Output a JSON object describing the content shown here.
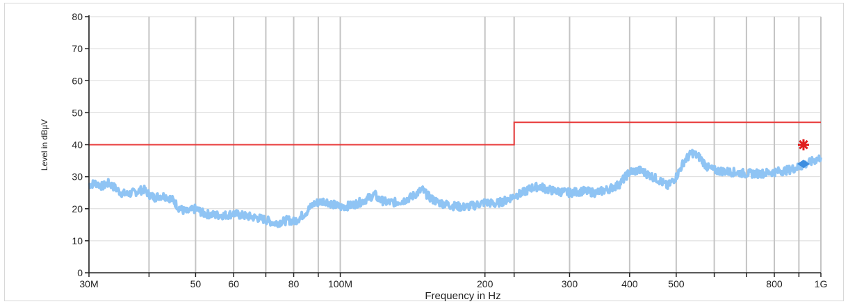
{
  "chart_data": {
    "type": "line",
    "xlabel": "Frequency in Hz",
    "ylabel": "Level in dBµV",
    "x_scale": "log",
    "xlim": [
      30000000,
      1000000000
    ],
    "ylim": [
      0,
      80
    ],
    "grid": true,
    "x_ticks": [
      {
        "value": 30000000,
        "label": "30M"
      },
      {
        "value": 50000000,
        "label": "50"
      },
      {
        "value": 60000000,
        "label": "60"
      },
      {
        "value": 80000000,
        "label": "80"
      },
      {
        "value": 100000000,
        "label": "100M"
      },
      {
        "value": 200000000,
        "label": "200"
      },
      {
        "value": 300000000,
        "label": "300"
      },
      {
        "value": 400000000,
        "label": "400"
      },
      {
        "value": 500000000,
        "label": "500"
      },
      {
        "value": 800000000,
        "label": "800"
      },
      {
        "value": 1000000000,
        "label": "1G"
      }
    ],
    "x_gridlines": [
      30000000,
      40000000,
      50000000,
      60000000,
      70000000,
      80000000,
      90000000,
      100000000,
      200000000,
      230000000,
      300000000,
      400000000,
      500000000,
      600000000,
      700000000,
      800000000,
      900000000,
      1000000000
    ],
    "y_ticks": [
      0,
      10,
      20,
      30,
      40,
      50,
      60,
      70,
      80
    ],
    "series": [
      {
        "role": "measured-spectrum",
        "color": "#8fc4f4",
        "points": [
          [
            30000000,
            27.5
          ],
          [
            31000000,
            28
          ],
          [
            32000000,
            27
          ],
          [
            33000000,
            28
          ],
          [
            34000000,
            26.5
          ],
          [
            35000000,
            25
          ],
          [
            36000000,
            24.5
          ],
          [
            37000000,
            25
          ],
          [
            38000000,
            25.5
          ],
          [
            39000000,
            26
          ],
          [
            40000000,
            24.5
          ],
          [
            41000000,
            23.5
          ],
          [
            42000000,
            24
          ],
          [
            43000000,
            24
          ],
          [
            44000000,
            23.5
          ],
          [
            45000000,
            22.5
          ],
          [
            46000000,
            20.5
          ],
          [
            47000000,
            19.5
          ],
          [
            48000000,
            19
          ],
          [
            49000000,
            19.5
          ],
          [
            50000000,
            20
          ],
          [
            52000000,
            18.5
          ],
          [
            55000000,
            18
          ],
          [
            58000000,
            18
          ],
          [
            60000000,
            18.5
          ],
          [
            62000000,
            18
          ],
          [
            65000000,
            17.5
          ],
          [
            68000000,
            17
          ],
          [
            70000000,
            16.5
          ],
          [
            73000000,
            15.5
          ],
          [
            76000000,
            16
          ],
          [
            78000000,
            16.5
          ],
          [
            80000000,
            16
          ],
          [
            82000000,
            17
          ],
          [
            85000000,
            19
          ],
          [
            88000000,
            21.5
          ],
          [
            90000000,
            22
          ],
          [
            93000000,
            22.5
          ],
          [
            96000000,
            21.5
          ],
          [
            100000000,
            20.5
          ],
          [
            105000000,
            21
          ],
          [
            110000000,
            22
          ],
          [
            115000000,
            23.5
          ],
          [
            118000000,
            24.5
          ],
          [
            120000000,
            23
          ],
          [
            125000000,
            22
          ],
          [
            130000000,
            22
          ],
          [
            135000000,
            22.5
          ],
          [
            140000000,
            23.5
          ],
          [
            145000000,
            25
          ],
          [
            148000000,
            26
          ],
          [
            150000000,
            25
          ],
          [
            155000000,
            23
          ],
          [
            160000000,
            22
          ],
          [
            165000000,
            21.5
          ],
          [
            170000000,
            21
          ],
          [
            180000000,
            20.5
          ],
          [
            190000000,
            21
          ],
          [
            200000000,
            22
          ],
          [
            210000000,
            21.5
          ],
          [
            220000000,
            22.5
          ],
          [
            230000000,
            24
          ],
          [
            240000000,
            25
          ],
          [
            250000000,
            26.5
          ],
          [
            260000000,
            27
          ],
          [
            270000000,
            26
          ],
          [
            280000000,
            25.5
          ],
          [
            300000000,
            25
          ],
          [
            320000000,
            25.5
          ],
          [
            340000000,
            25
          ],
          [
            360000000,
            26
          ],
          [
            380000000,
            27.5
          ],
          [
            400000000,
            31.5
          ],
          [
            420000000,
            32
          ],
          [
            440000000,
            30.5
          ],
          [
            460000000,
            29
          ],
          [
            480000000,
            27
          ],
          [
            500000000,
            30
          ],
          [
            520000000,
            35
          ],
          [
            540000000,
            37.5
          ],
          [
            560000000,
            36
          ],
          [
            580000000,
            33
          ],
          [
            600000000,
            32
          ],
          [
            650000000,
            31.5
          ],
          [
            700000000,
            31
          ],
          [
            750000000,
            31
          ],
          [
            800000000,
            31.5
          ],
          [
            850000000,
            32
          ],
          [
            900000000,
            33
          ],
          [
            950000000,
            34.5
          ],
          [
            1000000000,
            36
          ]
        ]
      },
      {
        "role": "limit-line",
        "color": "#e83a3a",
        "points": [
          [
            30000000,
            40
          ],
          [
            230000000,
            40
          ],
          [
            230000000,
            47
          ],
          [
            1000000000,
            47
          ]
        ]
      }
    ],
    "markers": [
      {
        "x": 920000000,
        "y": 40,
        "shape": "star",
        "color": "#e02020"
      },
      {
        "x": 920000000,
        "y": 34,
        "shape": "diamond",
        "color": "#3d8ee0"
      }
    ]
  }
}
